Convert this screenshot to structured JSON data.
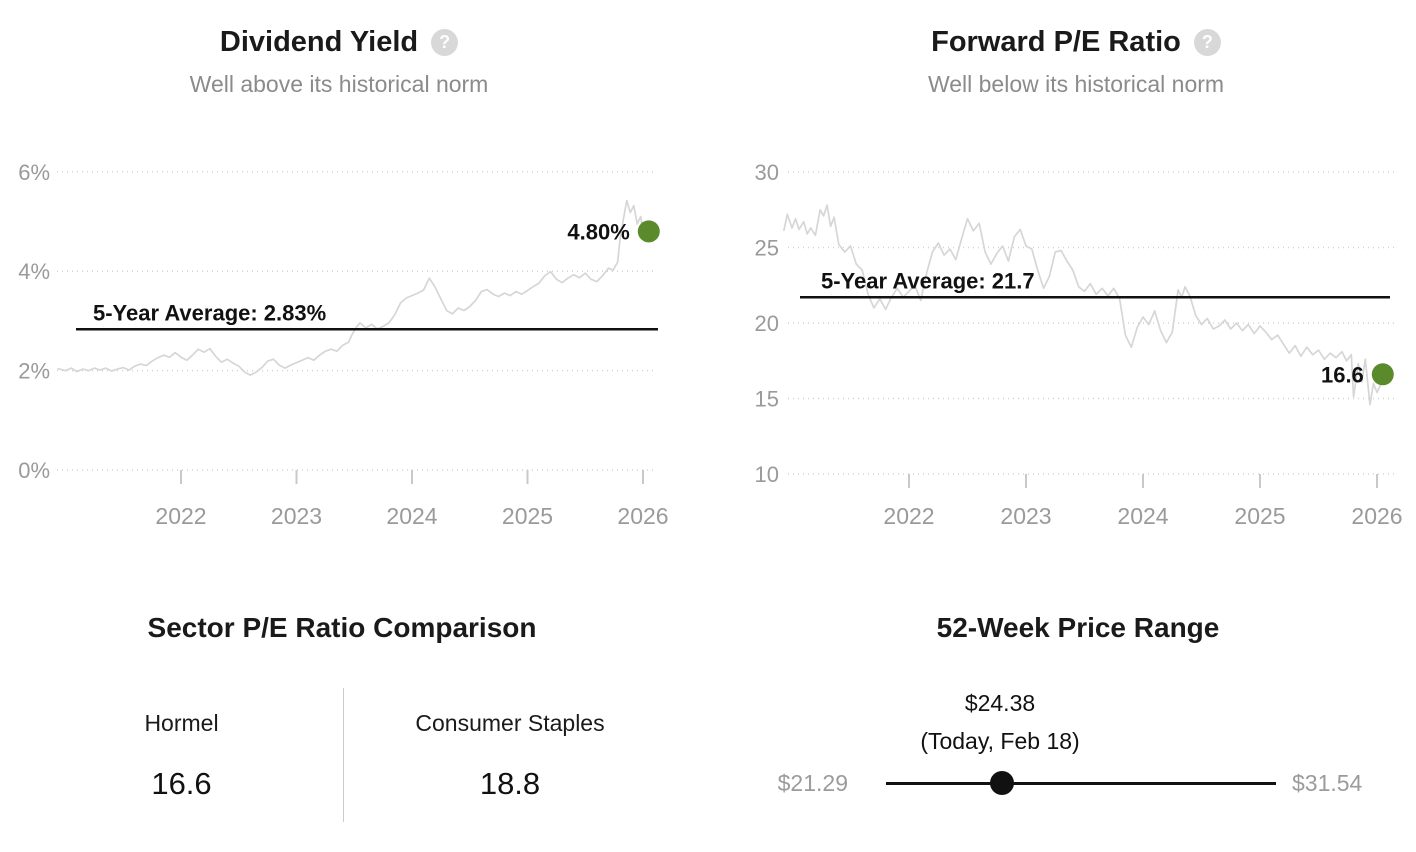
{
  "colors": {
    "accent_green": "#5a8a2b",
    "series_line": "#d6d6d6",
    "axis_text": "#9a9a9a",
    "average_line": "#111111",
    "muted_text": "#8b8b8b",
    "divider": "#cccccc",
    "help_icon_bg": "#d8d8d8"
  },
  "help_icon_glyph": "?",
  "chart_data": [
    {
      "type": "line",
      "title": "Dividend Yield",
      "subtitle": "Well above its historical norm",
      "average_value": 2.83,
      "average_label": "5-Year Average: 2.83%",
      "current_value": 4.8,
      "current_label": "4.80%",
      "xlim": [
        2020.93,
        2026.2
      ],
      "ylim": [
        0,
        6.6
      ],
      "grid": "dotted-horizontal",
      "yticks": [
        {
          "v": 0,
          "label": "0%"
        },
        {
          "v": 2,
          "label": "2%"
        },
        {
          "v": 4,
          "label": "4%"
        },
        {
          "v": 6,
          "label": "6%"
        }
      ],
      "xticks": [
        {
          "v": 2022,
          "label": "2022"
        },
        {
          "v": 2023,
          "label": "2023"
        },
        {
          "v": 2024,
          "label": "2024"
        },
        {
          "v": 2025,
          "label": "2025"
        },
        {
          "v": 2026,
          "label": "2026"
        }
      ],
      "series": [
        [
          2020.93,
          2.04
        ],
        [
          2021.0,
          2.0
        ],
        [
          2021.05,
          2.05
        ],
        [
          2021.1,
          1.98
        ],
        [
          2021.15,
          2.03
        ],
        [
          2021.2,
          2.0
        ],
        [
          2021.25,
          2.05
        ],
        [
          2021.3,
          2.01
        ],
        [
          2021.35,
          2.05
        ],
        [
          2021.4,
          1.99
        ],
        [
          2021.45,
          2.03
        ],
        [
          2021.5,
          2.06
        ],
        [
          2021.55,
          2.01
        ],
        [
          2021.6,
          2.09
        ],
        [
          2021.65,
          2.13
        ],
        [
          2021.7,
          2.1
        ],
        [
          2021.75,
          2.19
        ],
        [
          2021.8,
          2.26
        ],
        [
          2021.85,
          2.31
        ],
        [
          2021.9,
          2.27
        ],
        [
          2021.95,
          2.36
        ],
        [
          2022.0,
          2.27
        ],
        [
          2022.05,
          2.21
        ],
        [
          2022.1,
          2.31
        ],
        [
          2022.15,
          2.43
        ],
        [
          2022.2,
          2.37
        ],
        [
          2022.25,
          2.44
        ],
        [
          2022.3,
          2.29
        ],
        [
          2022.35,
          2.17
        ],
        [
          2022.4,
          2.23
        ],
        [
          2022.45,
          2.15
        ],
        [
          2022.5,
          2.09
        ],
        [
          2022.55,
          1.97
        ],
        [
          2022.6,
          1.91
        ],
        [
          2022.65,
          1.97
        ],
        [
          2022.7,
          2.06
        ],
        [
          2022.75,
          2.19
        ],
        [
          2022.8,
          2.23
        ],
        [
          2022.85,
          2.11
        ],
        [
          2022.9,
          2.05
        ],
        [
          2022.95,
          2.11
        ],
        [
          2023.0,
          2.16
        ],
        [
          2023.05,
          2.21
        ],
        [
          2023.1,
          2.26
        ],
        [
          2023.15,
          2.21
        ],
        [
          2023.2,
          2.31
        ],
        [
          2023.25,
          2.39
        ],
        [
          2023.3,
          2.43
        ],
        [
          2023.35,
          2.39
        ],
        [
          2023.4,
          2.51
        ],
        [
          2023.45,
          2.57
        ],
        [
          2023.48,
          2.72
        ],
        [
          2023.52,
          2.88
        ],
        [
          2023.55,
          2.96
        ],
        [
          2023.6,
          2.86
        ],
        [
          2023.65,
          2.93
        ],
        [
          2023.7,
          2.84
        ],
        [
          2023.75,
          2.89
        ],
        [
          2023.8,
          2.96
        ],
        [
          2023.85,
          3.12
        ],
        [
          2023.9,
          3.36
        ],
        [
          2023.95,
          3.46
        ],
        [
          2024.0,
          3.51
        ],
        [
          2024.05,
          3.56
        ],
        [
          2024.1,
          3.62
        ],
        [
          2024.15,
          3.86
        ],
        [
          2024.2,
          3.68
        ],
        [
          2024.25,
          3.44
        ],
        [
          2024.3,
          3.21
        ],
        [
          2024.35,
          3.14
        ],
        [
          2024.4,
          3.26
        ],
        [
          2024.45,
          3.21
        ],
        [
          2024.5,
          3.29
        ],
        [
          2024.55,
          3.41
        ],
        [
          2024.6,
          3.59
        ],
        [
          2024.65,
          3.63
        ],
        [
          2024.7,
          3.54
        ],
        [
          2024.75,
          3.49
        ],
        [
          2024.8,
          3.56
        ],
        [
          2024.85,
          3.51
        ],
        [
          2024.9,
          3.59
        ],
        [
          2024.95,
          3.54
        ],
        [
          2025.0,
          3.61
        ],
        [
          2025.05,
          3.69
        ],
        [
          2025.1,
          3.76
        ],
        [
          2025.15,
          3.91
        ],
        [
          2025.2,
          3.99
        ],
        [
          2025.25,
          3.84
        ],
        [
          2025.3,
          3.77
        ],
        [
          2025.35,
          3.86
        ],
        [
          2025.4,
          3.93
        ],
        [
          2025.45,
          3.87
        ],
        [
          2025.5,
          3.96
        ],
        [
          2025.55,
          3.84
        ],
        [
          2025.6,
          3.79
        ],
        [
          2025.65,
          3.91
        ],
        [
          2025.7,
          4.06
        ],
        [
          2025.74,
          4.02
        ],
        [
          2025.78,
          4.18
        ],
        [
          2025.8,
          4.62
        ],
        [
          2025.83,
          5.05
        ],
        [
          2025.86,
          5.42
        ],
        [
          2025.89,
          5.18
        ],
        [
          2025.92,
          5.32
        ],
        [
          2025.95,
          4.95
        ],
        [
          2025.98,
          5.1
        ],
        [
          2026.0,
          4.82
        ],
        [
          2026.02,
          4.98
        ],
        [
          2026.04,
          4.66
        ],
        [
          2026.05,
          4.8
        ]
      ]
    },
    {
      "type": "line",
      "title": "Forward P/E Ratio",
      "subtitle": "Well below its historical norm",
      "average_value": 21.7,
      "average_label": "5-Year Average: 21.7",
      "current_value": 16.6,
      "current_label": "16.6",
      "xlim": [
        2020.93,
        2026.2
      ],
      "ylim": [
        10,
        30.7
      ],
      "grid": "dotted-horizontal",
      "yticks": [
        {
          "v": 10,
          "label": "10"
        },
        {
          "v": 15,
          "label": "15"
        },
        {
          "v": 20,
          "label": "20"
        },
        {
          "v": 25,
          "label": "25"
        },
        {
          "v": 30,
          "label": "30"
        }
      ],
      "xticks": [
        {
          "v": 2022,
          "label": "2022"
        },
        {
          "v": 2023,
          "label": "2023"
        },
        {
          "v": 2024,
          "label": "2024"
        },
        {
          "v": 2025,
          "label": "2025"
        },
        {
          "v": 2026,
          "label": "2026"
        }
      ],
      "series": [
        [
          2020.93,
          26.1
        ],
        [
          2020.96,
          27.2
        ],
        [
          2021.0,
          26.3
        ],
        [
          2021.03,
          26.9
        ],
        [
          2021.06,
          26.2
        ],
        [
          2021.1,
          26.7
        ],
        [
          2021.13,
          25.9
        ],
        [
          2021.16,
          26.3
        ],
        [
          2021.2,
          25.8
        ],
        [
          2021.24,
          27.5
        ],
        [
          2021.27,
          27.1
        ],
        [
          2021.3,
          27.8
        ],
        [
          2021.33,
          26.4
        ],
        [
          2021.36,
          27.0
        ],
        [
          2021.4,
          25.2
        ],
        [
          2021.45,
          24.7
        ],
        [
          2021.5,
          25.1
        ],
        [
          2021.55,
          23.9
        ],
        [
          2021.6,
          23.5
        ],
        [
          2021.65,
          21.9
        ],
        [
          2021.7,
          21.0
        ],
        [
          2021.75,
          21.6
        ],
        [
          2021.8,
          20.9
        ],
        [
          2021.85,
          21.7
        ],
        [
          2021.9,
          22.3
        ],
        [
          2021.95,
          21.7
        ],
        [
          2022.0,
          22.1
        ],
        [
          2022.05,
          22.5
        ],
        [
          2022.1,
          21.5
        ],
        [
          2022.15,
          23.3
        ],
        [
          2022.2,
          24.7
        ],
        [
          2022.25,
          25.3
        ],
        [
          2022.3,
          24.5
        ],
        [
          2022.35,
          24.9
        ],
        [
          2022.4,
          24.2
        ],
        [
          2022.45,
          25.6
        ],
        [
          2022.5,
          26.9
        ],
        [
          2022.55,
          26.1
        ],
        [
          2022.6,
          26.6
        ],
        [
          2022.65,
          24.7
        ],
        [
          2022.7,
          23.9
        ],
        [
          2022.75,
          24.6
        ],
        [
          2022.8,
          25.1
        ],
        [
          2022.85,
          24.1
        ],
        [
          2022.9,
          25.7
        ],
        [
          2022.95,
          26.2
        ],
        [
          2023.0,
          25.1
        ],
        [
          2023.05,
          24.9
        ],
        [
          2023.1,
          23.5
        ],
        [
          2023.15,
          22.3
        ],
        [
          2023.2,
          23.1
        ],
        [
          2023.25,
          24.7
        ],
        [
          2023.3,
          24.8
        ],
        [
          2023.35,
          24.1
        ],
        [
          2023.4,
          23.5
        ],
        [
          2023.45,
          22.4
        ],
        [
          2023.5,
          22.1
        ],
        [
          2023.55,
          22.6
        ],
        [
          2023.6,
          21.9
        ],
        [
          2023.65,
          22.3
        ],
        [
          2023.7,
          21.8
        ],
        [
          2023.75,
          22.3
        ],
        [
          2023.8,
          21.6
        ],
        [
          2023.85,
          19.2
        ],
        [
          2023.9,
          18.4
        ],
        [
          2023.95,
          19.7
        ],
        [
          2024.0,
          20.4
        ],
        [
          2024.05,
          19.9
        ],
        [
          2024.1,
          20.8
        ],
        [
          2024.15,
          19.5
        ],
        [
          2024.2,
          18.7
        ],
        [
          2024.25,
          19.4
        ],
        [
          2024.3,
          22.2
        ],
        [
          2024.33,
          21.7
        ],
        [
          2024.36,
          22.4
        ],
        [
          2024.4,
          21.8
        ],
        [
          2024.45,
          20.5
        ],
        [
          2024.5,
          19.9
        ],
        [
          2024.55,
          20.3
        ],
        [
          2024.6,
          19.6
        ],
        [
          2024.65,
          19.8
        ],
        [
          2024.7,
          20.2
        ],
        [
          2024.75,
          19.6
        ],
        [
          2024.8,
          20.0
        ],
        [
          2024.85,
          19.5
        ],
        [
          2024.9,
          19.9
        ],
        [
          2024.95,
          19.3
        ],
        [
          2025.0,
          19.8
        ],
        [
          2025.05,
          19.4
        ],
        [
          2025.1,
          18.9
        ],
        [
          2025.15,
          19.2
        ],
        [
          2025.2,
          18.6
        ],
        [
          2025.25,
          18.0
        ],
        [
          2025.3,
          18.5
        ],
        [
          2025.35,
          17.8
        ],
        [
          2025.4,
          18.4
        ],
        [
          2025.45,
          17.9
        ],
        [
          2025.5,
          18.2
        ],
        [
          2025.55,
          17.6
        ],
        [
          2025.6,
          18.0
        ],
        [
          2025.65,
          17.7
        ],
        [
          2025.7,
          18.1
        ],
        [
          2025.74,
          17.5
        ],
        [
          2025.78,
          17.9
        ],
        [
          2025.8,
          15.1
        ],
        [
          2025.84,
          17.3
        ],
        [
          2025.87,
          16.1
        ],
        [
          2025.9,
          17.6
        ],
        [
          2025.94,
          14.6
        ],
        [
          2025.97,
          16.0
        ],
        [
          2026.0,
          15.4
        ],
        [
          2026.03,
          15.9
        ],
        [
          2026.05,
          16.6
        ]
      ]
    },
    {
      "type": "table",
      "title": "Sector P/E Ratio Comparison",
      "columns": [
        {
          "label": "Hormel",
          "value": "16.6"
        },
        {
          "label": "Consumer Staples",
          "value": "18.8"
        }
      ]
    },
    {
      "type": "range",
      "title": "52-Week Price Range",
      "low": 21.29,
      "high": 31.54,
      "current": 24.38,
      "low_label": "$21.29",
      "high_label": "$31.54",
      "current_price_label": "$24.38",
      "current_date_label": "(Today, Feb 18)"
    }
  ]
}
